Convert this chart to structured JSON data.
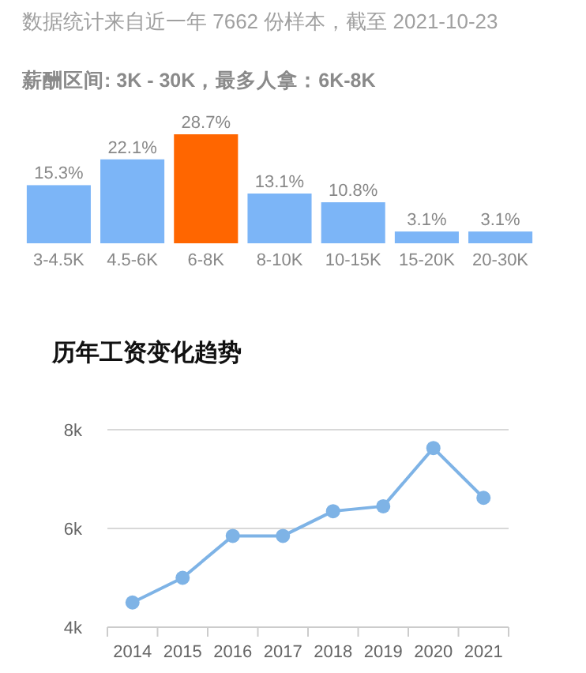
{
  "chart_data": [
    {
      "type": "bar",
      "title": "数据统计来自近一年 7662 份样本，截至 2021-10-23",
      "subtitle": "薪酬区间: 3K - 30K，最多人拿：6K-8K",
      "categories": [
        "3-4.5K",
        "4.5-6K",
        "6-8K",
        "8-10K",
        "10-15K",
        "15-20K",
        "20-30K"
      ],
      "values": [
        15.3,
        22.1,
        28.7,
        13.1,
        10.8,
        3.1,
        3.1
      ],
      "colors": [
        "#7cb5f7",
        "#7cb5f7",
        "#ff6600",
        "#7cb5f7",
        "#7cb5f7",
        "#7cb5f7",
        "#7cb5f7"
      ],
      "value_labels": [
        "15.3%",
        "22.1%",
        "28.7%",
        "13.1%",
        "10.8%",
        "3.1%",
        "3.1%"
      ]
    },
    {
      "type": "line",
      "title": "历年工资变化趋势",
      "categories": [
        "2014",
        "2015",
        "2016",
        "2017",
        "2018",
        "2019",
        "2020",
        "2021"
      ],
      "series": [
        {
          "color": "#7eb3e6",
          "values": [
            4500,
            5000,
            5850,
            5850,
            6350,
            6450,
            7630,
            6620
          ]
        }
      ],
      "ylim": [
        4000,
        8000
      ],
      "yticks": [
        {
          "value": 4000,
          "label": "4k"
        },
        {
          "value": 6000,
          "label": "6k"
        },
        {
          "value": 8000,
          "label": "8k"
        }
      ],
      "grid": "y",
      "marker": "circle"
    }
  ]
}
